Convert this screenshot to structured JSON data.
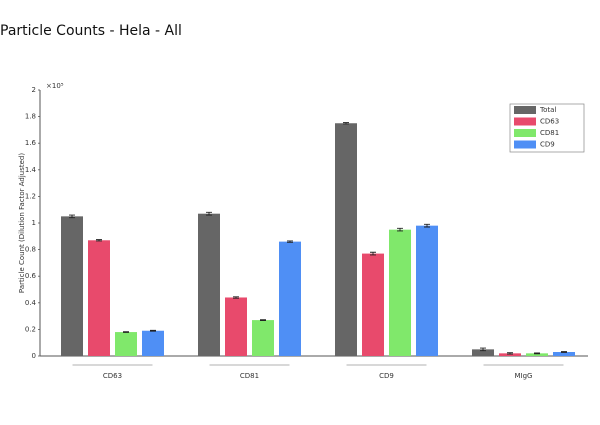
{
  "chart_data": {
    "type": "bar",
    "title": "Particle Counts - Hela - All",
    "y_label": "Particle Count (Dilution Factor Adjusted)",
    "y_multiplier": "×10⁵",
    "categories": [
      "CD63",
      "CD81",
      "CD9",
      "MIgG"
    ],
    "series": [
      {
        "name": "Total",
        "color": "#666666",
        "values": [
          1.05,
          1.07,
          1.75,
          0.05
        ],
        "errors": [
          0.01,
          0.01,
          0.005,
          0.01
        ]
      },
      {
        "name": "CD63",
        "color": "#e84a6c",
        "values": [
          0.87,
          0.44,
          0.77,
          0.02
        ],
        "errors": [
          0.005,
          0.005,
          0.01,
          0.005
        ]
      },
      {
        "name": "CD81",
        "color": "#80e86b",
        "values": [
          0.18,
          0.27,
          0.95,
          0.02
        ],
        "errors": [
          0.003,
          0.003,
          0.01,
          0.003
        ]
      },
      {
        "name": "CD9",
        "color": "#4f8ff5",
        "values": [
          0.19,
          0.86,
          0.98,
          0.03
        ],
        "errors": [
          0.003,
          0.005,
          0.01,
          0.003
        ]
      }
    ],
    "ylim": [
      0,
      2
    ],
    "yticks": [
      0,
      0.2,
      0.4,
      0.6,
      0.8,
      1,
      1.2,
      1.4,
      1.6,
      1.8,
      2
    ],
    "legend": "top-right"
  }
}
